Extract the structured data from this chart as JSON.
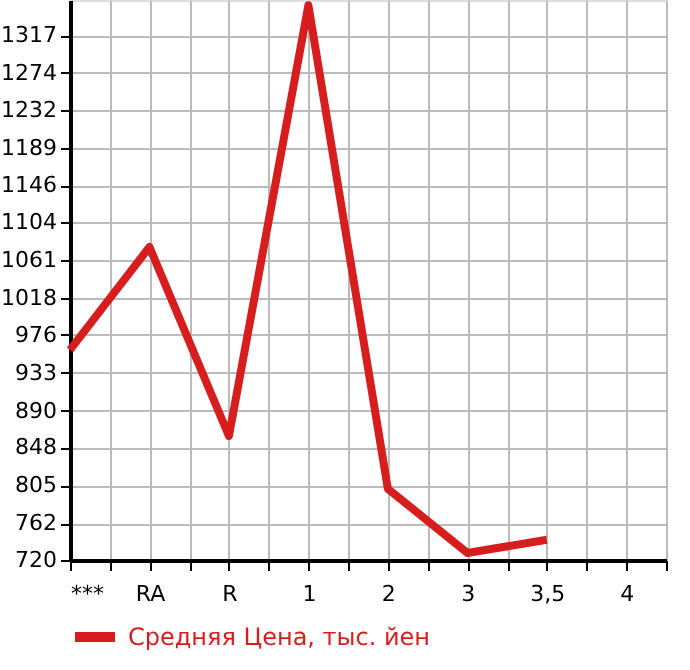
{
  "chart_data": {
    "type": "line",
    "categories": [
      "***",
      "RA",
      "R",
      "1",
      "2",
      "3",
      "3,5",
      "4"
    ],
    "series": [
      {
        "name": "Средняя Цена, тыс. йен",
        "color": "#d71e1e",
        "values": [
          959,
          1076,
          861,
          1351,
          801,
          728,
          743,
          null
        ]
      }
    ],
    "ylim": [
      720,
      1357
    ],
    "yticks": [
      720,
      762,
      805,
      848,
      890,
      933,
      976,
      1018,
      1061,
      1104,
      1146,
      1189,
      1232,
      1274,
      1317
    ],
    "grid": true,
    "legend": "bottom",
    "marker": "none",
    "line_style": "solid"
  }
}
